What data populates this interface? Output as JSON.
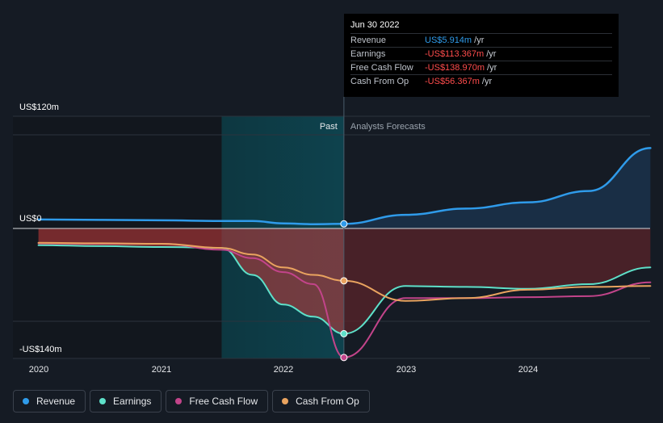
{
  "chart_data": {
    "type": "line",
    "x_ticks": [
      "2020",
      "2021",
      "2022",
      "2023",
      "2024"
    ],
    "y_labels": {
      "top": "US$120m",
      "zero": "US$0",
      "bottom": "-US$140m"
    },
    "ylim": [
      -140,
      120
    ],
    "region_labels": {
      "past": "Past",
      "forecast": "Analysts Forecasts"
    },
    "divider_date": "2022-06-30",
    "series": [
      {
        "name": "Revenue",
        "color": "#2f9bea",
        "points": [
          [
            "2019-12-31",
            11.5
          ],
          [
            "2020-12-31",
            10.5
          ],
          [
            "2021-06-30",
            9.5
          ],
          [
            "2021-09-30",
            9.5
          ],
          [
            "2022-01-01",
            6.5
          ],
          [
            "2022-03-31",
            5.5
          ],
          [
            "2022-06-30",
            5.914
          ],
          [
            "2023-01-01",
            17.5
          ],
          [
            "2023-06-30",
            25.5
          ],
          [
            "2024-01-01",
            33.5
          ],
          [
            "2024-06-30",
            48
          ],
          [
            "2024-12-31",
            103
          ]
        ]
      },
      {
        "name": "Earnings",
        "color": "#5ee0c9",
        "points": [
          [
            "2019-12-31",
            -18
          ],
          [
            "2020-06-30",
            -19
          ],
          [
            "2021-01-01",
            -20
          ],
          [
            "2021-06-30",
            -21
          ],
          [
            "2021-09-30",
            -50
          ],
          [
            "2021-12-31",
            -82
          ],
          [
            "2022-03-31",
            -95
          ],
          [
            "2022-06-30",
            -113.367
          ],
          [
            "2022-12-31",
            -62
          ],
          [
            "2023-06-30",
            -63
          ],
          [
            "2024-01-01",
            -65
          ],
          [
            "2024-06-30",
            -60
          ],
          [
            "2024-12-31",
            -42
          ]
        ]
      },
      {
        "name": "Free Cash Flow",
        "color": "#c2448a",
        "points": [
          [
            "2019-12-31",
            -16
          ],
          [
            "2020-06-30",
            -16.5
          ],
          [
            "2021-01-01",
            -16.5
          ],
          [
            "2021-06-30",
            -23
          ],
          [
            "2021-09-30",
            -32
          ],
          [
            "2021-12-31",
            -47
          ],
          [
            "2022-03-31",
            -60
          ],
          [
            "2022-06-30",
            -138.97
          ],
          [
            "2022-12-31",
            -75
          ],
          [
            "2023-06-30",
            -75
          ],
          [
            "2024-01-01",
            -74
          ],
          [
            "2024-06-30",
            -73
          ],
          [
            "2024-12-31",
            -58
          ]
        ]
      },
      {
        "name": "Cash From Op",
        "color": "#e9a35f",
        "points": [
          [
            "2019-12-31",
            -15.5
          ],
          [
            "2020-06-30",
            -16
          ],
          [
            "2021-01-01",
            -16.5
          ],
          [
            "2021-06-30",
            -21
          ],
          [
            "2021-09-30",
            -28
          ],
          [
            "2021-12-31",
            -42
          ],
          [
            "2022-03-31",
            -50
          ],
          [
            "2022-06-30",
            -56.367
          ],
          [
            "2022-12-31",
            -78
          ],
          [
            "2023-06-30",
            -75
          ],
          [
            "2024-01-01",
            -66
          ],
          [
            "2024-06-30",
            -63
          ],
          [
            "2024-12-31",
            -62
          ]
        ]
      }
    ]
  },
  "tooltip": {
    "date": "Jun 30 2022",
    "rows": [
      {
        "label": "Revenue",
        "value": "US$5.914m",
        "unit": " /yr",
        "color": "#2f9bea"
      },
      {
        "label": "Earnings",
        "value": "-US$113.367m",
        "unit": " /yr",
        "color": "#ff4c4c"
      },
      {
        "label": "Free Cash Flow",
        "value": "-US$138.970m",
        "unit": " /yr",
        "color": "#ff4c4c"
      },
      {
        "label": "Cash From Op",
        "value": "-US$56.367m",
        "unit": " /yr",
        "color": "#ff4c4c"
      }
    ]
  },
  "legend": [
    {
      "label": "Revenue",
      "color": "#2f9bea"
    },
    {
      "label": "Earnings",
      "color": "#5ee0c9"
    },
    {
      "label": "Free Cash Flow",
      "color": "#c2448a"
    },
    {
      "label": "Cash From Op",
      "color": "#e9a35f"
    }
  ]
}
